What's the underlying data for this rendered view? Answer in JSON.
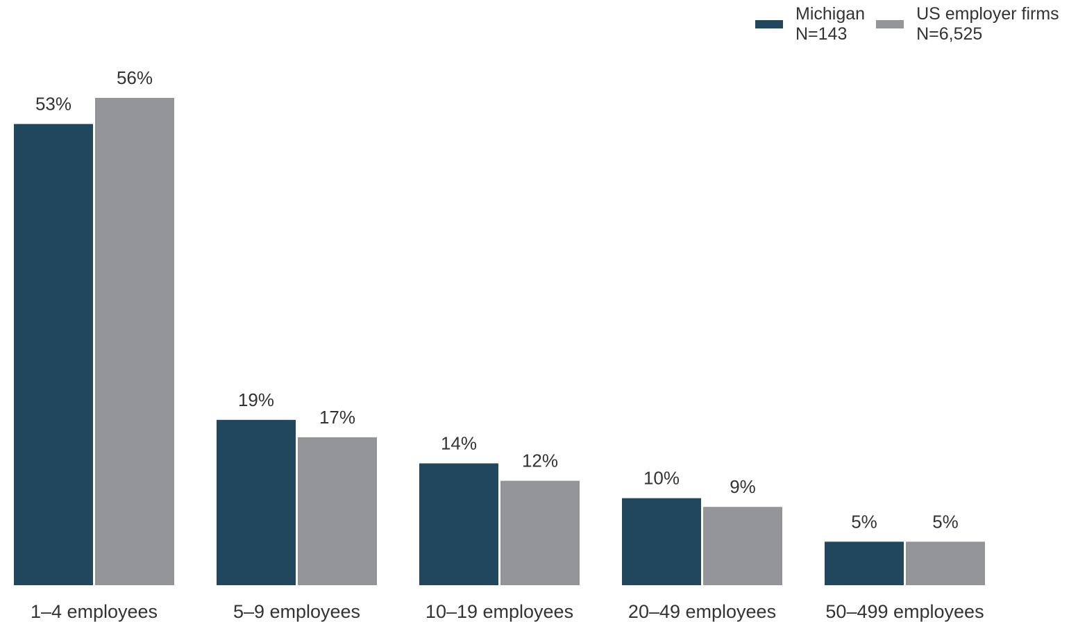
{
  "chart_data": {
    "type": "bar",
    "categories": [
      "1–4 employees",
      "5–9 employees",
      "10–19 employees",
      "20–49 employees",
      "50–499 employees"
    ],
    "series": [
      {
        "name": "Michigan",
        "sample": "N=143",
        "color": "#21475c",
        "values": [
          53,
          19,
          14,
          10,
          5
        ],
        "labels": [
          "53%",
          "19%",
          "14%",
          "10%",
          "5%"
        ]
      },
      {
        "name": "US employer firms",
        "sample": "N=6,525",
        "color": "#939598",
        "values": [
          56,
          17,
          12,
          9,
          5
        ],
        "labels": [
          "56%",
          "17%",
          "12%",
          "9%",
          "5%"
        ]
      }
    ],
    "ylim": [
      0,
      56
    ],
    "grid": false,
    "legend_position": "top-right"
  }
}
